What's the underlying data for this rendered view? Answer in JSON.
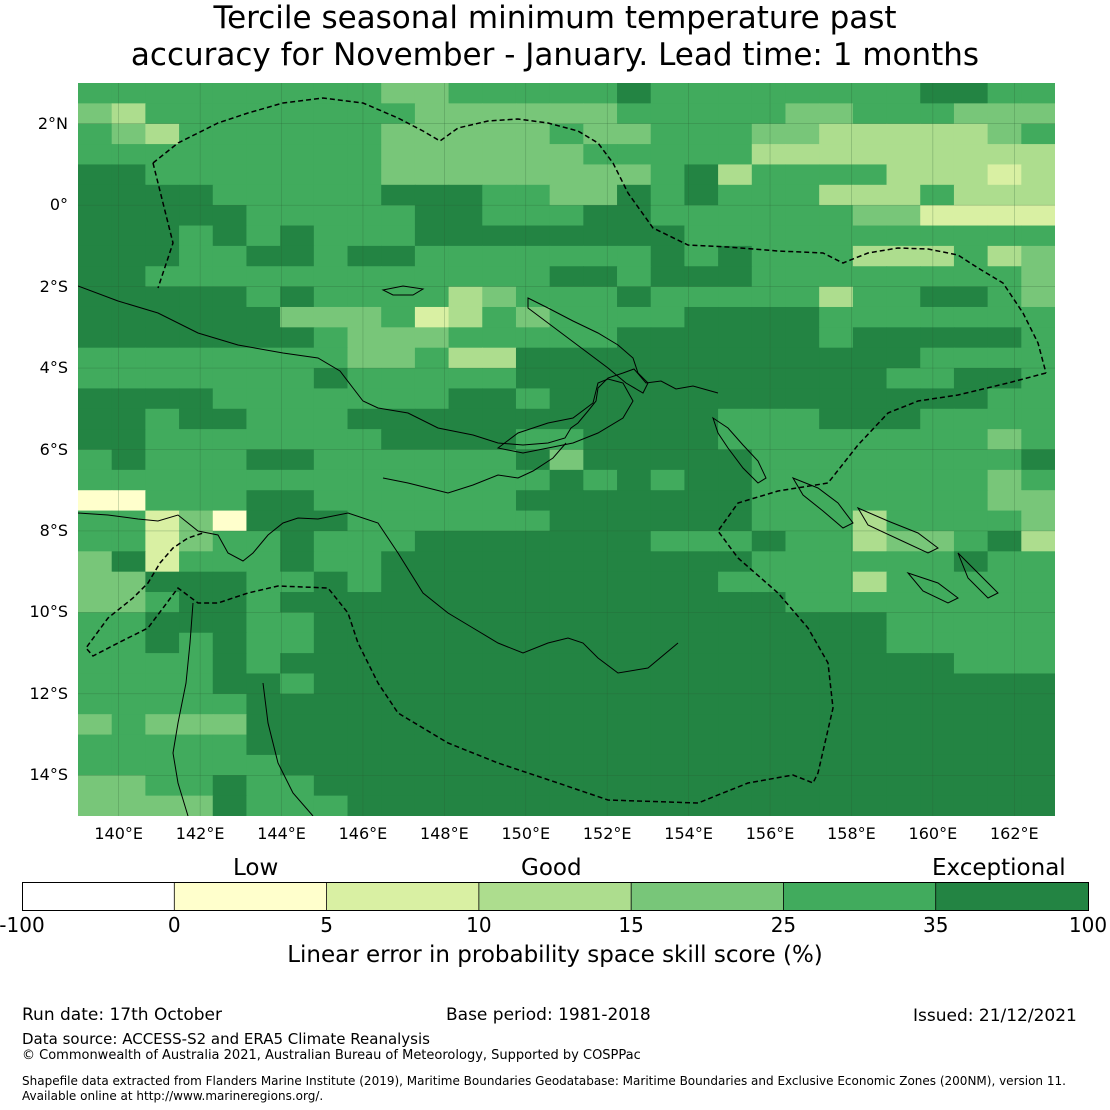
{
  "title": {
    "line1": "Tercile seasonal minimum temperature past",
    "line2": "accuracy for November - January. Lead time: 1 months"
  },
  "map": {
    "lon_range": [
      139,
      163
    ],
    "lat_range": [
      -15,
      3
    ],
    "lat_ticks": [
      {
        "value": 2,
        "label": "2°N"
      },
      {
        "value": 0,
        "label": "0°"
      },
      {
        "value": -2,
        "label": "2°S"
      },
      {
        "value": -4,
        "label": "4°S"
      },
      {
        "value": -6,
        "label": "6°S"
      },
      {
        "value": -8,
        "label": "8°S"
      },
      {
        "value": -10,
        "label": "10°S"
      },
      {
        "value": -12,
        "label": "12°S"
      },
      {
        "value": -14,
        "label": "14°S"
      }
    ],
    "lon_ticks": [
      {
        "value": 140,
        "label": "140°E"
      },
      {
        "value": 142,
        "label": "142°E"
      },
      {
        "value": 144,
        "label": "144°E"
      },
      {
        "value": 146,
        "label": "146°E"
      },
      {
        "value": 148,
        "label": "148°E"
      },
      {
        "value": 150,
        "label": "150°E"
      },
      {
        "value": 152,
        "label": "152°E"
      },
      {
        "value": 154,
        "label": "154°E"
      },
      {
        "value": 156,
        "label": "156°E"
      },
      {
        "value": 158,
        "label": "158°E"
      },
      {
        "value": 160,
        "label": "160°E"
      },
      {
        "value": 162,
        "label": "162°E"
      }
    ],
    "skill_categories_note": "cell classes 1..6 map to colorbar bins 0-5,5-10,10-15,15-25,25-35,35-100",
    "grid_rows": [
      "55555555544555556555555556655",
      "43555555554444445555544555444",
      "54355555544444544555443333345",
      "55555555544444455555333333333",
      "66555555544444444563555533323",
      "66665555566655446565553335333",
      "66666555556655566555555442222",
      "66656565556666666655555555555",
      "66655665665555555656555333534",
      "66555555555555665666555555554",
      "66666565555345556555553556654",
      "66666644452354555566665555555",
      "66666665444555556666665666665",
      "55555555445336666666666665555",
      "55555556555556666666666655665",
      "66665555555665666666666666655",
      "66566555666666666665556665555",
      "66555555566665566665555555545",
      "56555665555556466666555555556",
      "55555555555555656566555555545",
      "11555665555556666666555555544",
      "55241666555555666666555355554",
      "55245565556666666555655344563",
      "46255565566666666666555555655",
      "44666556566666666665555355555",
      "44566566666666666666655555555",
      "55666556666666666666666655555",
      "55656556666666666666666655555",
      "55556566666666666666666666555",
      "55556656666666666666666666666",
      "55555666666666666666666666666",
      "45444666666666666666666666666",
      "55555666666666666666666666666",
      "55555566666666666666666666666",
      "44556556666666666666666666666",
      "44446555666666666666666666666"
    ]
  },
  "categories": {
    "low": "Low",
    "good": "Good",
    "exceptional": "Exceptional"
  },
  "colorbar": {
    "bins": [
      {
        "from": -100,
        "to": 0,
        "color": "#ffffff"
      },
      {
        "from": 0,
        "to": 5,
        "color": "#ffffcc"
      },
      {
        "from": 5,
        "to": 10,
        "color": "#d9f0a3"
      },
      {
        "from": 10,
        "to": 15,
        "color": "#addd8e"
      },
      {
        "from": 15,
        "to": 25,
        "color": "#78c679"
      },
      {
        "from": 25,
        "to": 35,
        "color": "#41ab5d"
      },
      {
        "from": 35,
        "to": 100,
        "color": "#238443"
      }
    ],
    "tick_labels": [
      "-100",
      "0",
      "5",
      "10",
      "15",
      "25",
      "35",
      "100"
    ],
    "label": "Linear error in probability space skill score (%)"
  },
  "footer": {
    "run_date": "Run date: 17th October",
    "base_period": "Base period: 1981-2018",
    "issued": "Issued: 21/12/2021",
    "data_source": "Data source: ACCESS-S2 and ERA5 Climate Reanalysis",
    "copyright": "© Commonwealth of Australia 2021, Australian Bureau of Meteorology, Supported by COSPPac",
    "shapefile_line1": "Shapefile data extracted from Flanders Marine Institute (2019), Maritime Boundaries Geodatabase: Maritime Boundaries and Exclusive Economic Zones (200NM), version 11.",
    "shapefile_line2": "Available online at http://www.marineregions.org/."
  }
}
